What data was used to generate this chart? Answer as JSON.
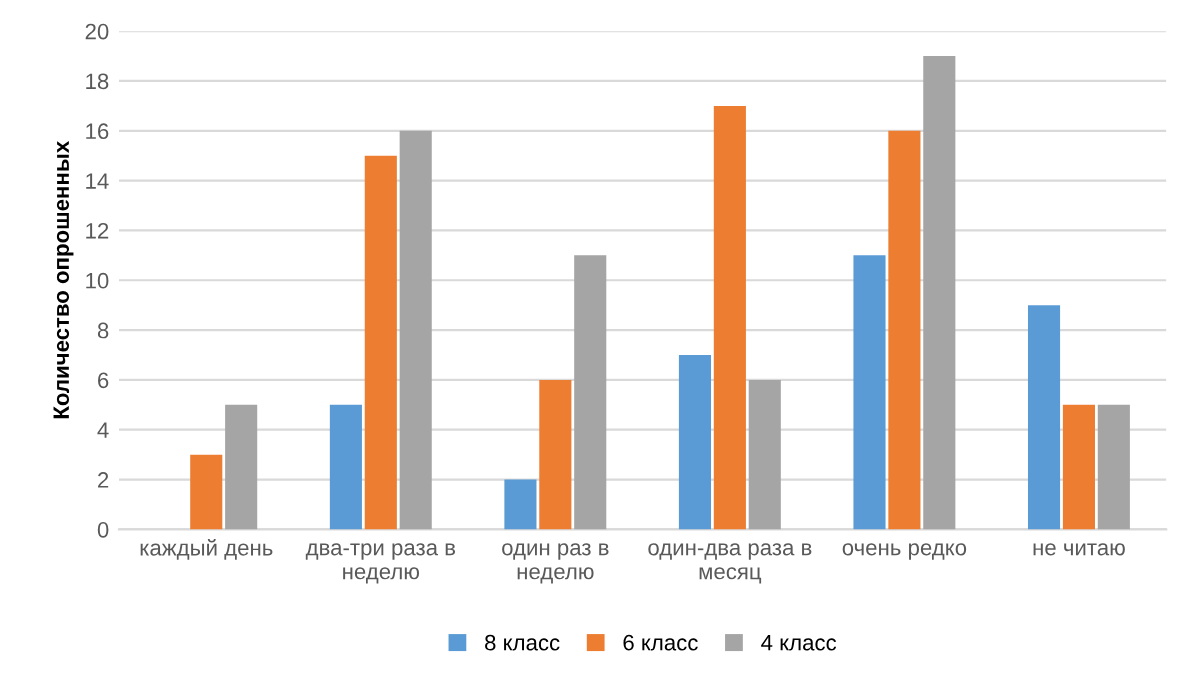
{
  "chart_data": {
    "type": "bar",
    "ylabel": "Количество опрошенных",
    "categories": [
      "каждый день",
      "два-три раза в\nнеделю",
      "один раз в\nнеделю",
      "один-два раза в\nмесяц",
      "очень редко",
      "не читаю"
    ],
    "series": [
      {
        "name": "8 класс",
        "color": "#5b9bd5",
        "values": [
          0,
          5,
          2,
          7,
          11,
          9
        ]
      },
      {
        "name": "6 класс",
        "color": "#ed7d31",
        "values": [
          3,
          15,
          6,
          17,
          16,
          5
        ]
      },
      {
        "name": "4 класс",
        "color": "#a5a5a5",
        "values": [
          5,
          16,
          11,
          6,
          19,
          5
        ]
      }
    ],
    "ylim": [
      0,
      20
    ],
    "yticks": [
      0,
      2,
      4,
      6,
      8,
      10,
      12,
      14,
      16,
      18,
      20
    ],
    "grid": "y",
    "legend": "bottom"
  }
}
